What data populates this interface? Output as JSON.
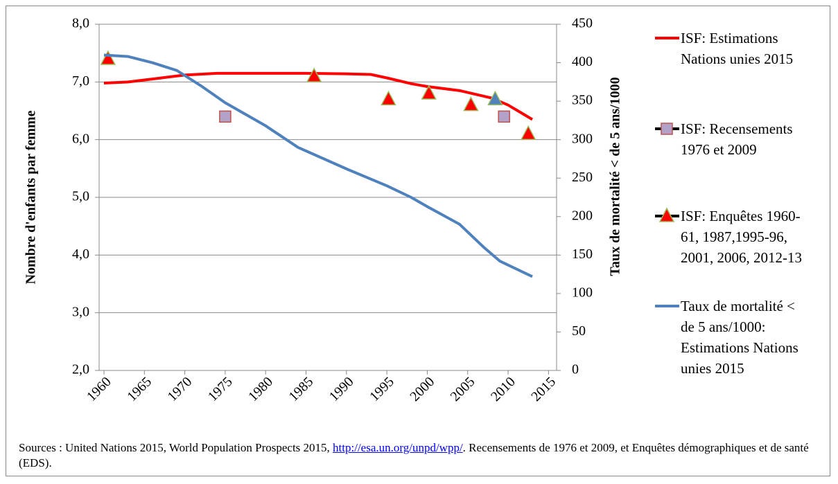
{
  "chart_data": {
    "type": "line",
    "ylabel": "Nombre d'enfants par femme",
    "y2label": "Taux de mortalité < de 5 ans/1000",
    "xlim": [
      1959.4,
      2016
    ],
    "xticks": [
      1960,
      1965,
      1970,
      1975,
      1980,
      1985,
      1990,
      1995,
      2000,
      2005,
      2010,
      2015
    ],
    "ylim": [
      2,
      8
    ],
    "yticks": [
      {
        "value": 2,
        "label": "2,0"
      },
      {
        "value": 3,
        "label": "3,0"
      },
      {
        "value": 4,
        "label": "4,0"
      },
      {
        "value": 5,
        "label": "5,0"
      },
      {
        "value": 6,
        "label": "6,0"
      },
      {
        "value": 7,
        "label": "7,0"
      },
      {
        "value": 8,
        "label": "8,0"
      }
    ],
    "y2lim": [
      0,
      450
    ],
    "y2ticks": [
      0,
      50,
      100,
      150,
      200,
      250,
      300,
      350,
      400,
      450
    ],
    "grid": true,
    "legend": "right",
    "series": [
      {
        "name": "ISF: Estimations\nNations unies 2015",
        "color": "#ff0000",
        "marker": "none",
        "x": [
          1960,
          1963,
          1966,
          1970,
          1974,
          1980,
          1985,
          1990,
          1993,
          1995,
          1998,
          2000,
          2004,
          2008,
          2010,
          2013
        ],
        "values": [
          6.98,
          7.0,
          7.05,
          7.12,
          7.15,
          7.15,
          7.15,
          7.14,
          7.13,
          7.07,
          6.97,
          6.92,
          6.85,
          6.72,
          6.6,
          6.35
        ]
      },
      {
        "name": "ISF: Recensements\n1976 et  2009",
        "color": "#b3a2c7",
        "marker": "square",
        "x": [
          1975,
          2009.5
        ],
        "values": [
          6.4,
          6.4
        ]
      },
      {
        "name": "ISF: Enquêtes 1960-\n61, 1987,1995-96,\n2001, 2006, 2012-13",
        "color": "#ff0000",
        "marker": "triangle",
        "x": [
          1960.5,
          1986,
          1995.2,
          2000.2,
          2005.4,
          2008.4,
          2012.5
        ],
        "values": [
          7.4,
          7.1,
          6.7,
          6.8,
          6.6,
          6.7,
          6.1
        ],
        "marker_colors": [
          "#ff0000",
          "#ff0000",
          "#ff0000",
          "#ff0000",
          "#ff0000",
          "#4f81bd",
          "#ff0000"
        ]
      },
      {
        "name": "Taux de mortalité <\nde 5 ans/1000:\nEstimations Nations\nunies 2015",
        "color": "#4f81bd",
        "marker": "none",
        "axis": "y2",
        "x": [
          1960,
          1963,
          1966,
          1969,
          1972,
          1975,
          1980,
          1984,
          1990,
          1995,
          1998,
          2000,
          2004,
          2007,
          2009,
          2013
        ],
        "values": [
          410,
          408,
          400,
          390,
          370,
          348,
          318,
          290,
          262,
          240,
          225,
          213,
          190,
          160,
          142,
          122
        ]
      }
    ]
  },
  "source": {
    "text_1": "Sources : United Nations 2015, World Population Prospects 2015, ",
    "link": "http://esa.un.org/unpd/wpp/",
    "text_2": ". Recensements de 1976 et 2009, et Enquêtes démographiques et de santé (EDS)."
  }
}
